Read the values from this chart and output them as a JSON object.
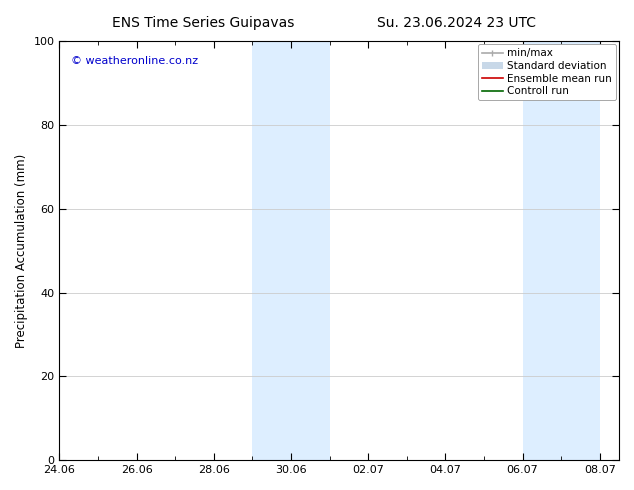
{
  "title_left": "ENS Time Series Guipavas",
  "title_right": "Su. 23.06.2024 23 UTC",
  "ylabel": "Precipitation Accumulation (mm)",
  "watermark": "© weatheronline.co.nz",
  "watermark_color": "#0000cc",
  "ylim": [
    0,
    100
  ],
  "yticks": [
    0,
    20,
    40,
    60,
    80,
    100
  ],
  "xlim": [
    0,
    14.5
  ],
  "x_tick_positions": [
    0,
    2,
    4,
    6,
    8,
    10,
    12,
    14
  ],
  "x_tick_labels": [
    "24.06",
    "26.06",
    "28.06",
    "30.06",
    "02.07",
    "04.07",
    "06.07",
    "08.07"
  ],
  "shaded_regions": [
    {
      "start": 5.0,
      "end": 7.0,
      "color": "#ddeeff"
    },
    {
      "start": 12.0,
      "end": 14.0,
      "color": "#ddeeff"
    }
  ],
  "background_color": "#ffffff",
  "plot_bg_color": "#ffffff",
  "grid_color": "#cccccc",
  "legend_items": [
    {
      "label": "min/max",
      "color": "#aaaaaa",
      "lw": 1.2,
      "type": "minmax"
    },
    {
      "label": "Standard deviation",
      "color": "#c8d8e8",
      "lw": 5,
      "type": "thick"
    },
    {
      "label": "Ensemble mean run",
      "color": "#cc0000",
      "lw": 1.2,
      "type": "line"
    },
    {
      "label": "Controll run",
      "color": "#006600",
      "lw": 1.2,
      "type": "line"
    }
  ],
  "title_fontsize": 10,
  "tick_fontsize": 8,
  "ylabel_fontsize": 8.5,
  "watermark_fontsize": 8,
  "legend_fontsize": 7.5
}
